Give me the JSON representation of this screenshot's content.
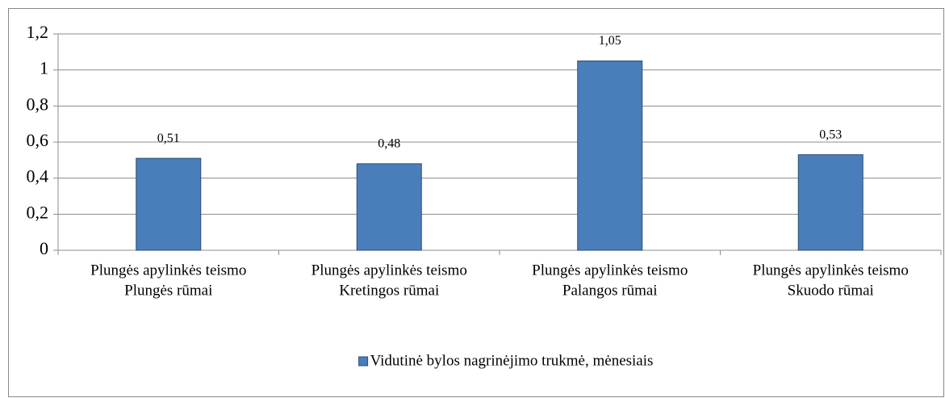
{
  "chart_data": {
    "type": "bar",
    "categories": [
      [
        "Plungės apylinkės teismo",
        "Plungės rūmai"
      ],
      [
        "Plungės apylinkės teismo",
        "Kretingos rūmai"
      ],
      [
        "Plungės apylinkės teismo",
        "Palangos rūmai"
      ],
      [
        "Plungės apylinkės teismo",
        "Skuodo rūmai"
      ]
    ],
    "series": [
      {
        "name": "Vidutinė bylos nagrinėjimo trukmė, mėnesiais",
        "color": "#4a7ebb",
        "values": [
          0.51,
          0.48,
          1.05,
          0.53
        ],
        "value_labels": [
          "0,51",
          "0,48",
          "1,05",
          "0,53"
        ]
      }
    ],
    "ylim": [
      0,
      1.2
    ],
    "yticks": [
      0,
      {
        "value": 0.2,
        "label": "0,2"
      },
      {
        "value": 0.4,
        "label": "0,4"
      },
      {
        "value": 0.6,
        "label": "0,6"
      },
      {
        "value": 0.8,
        "label": "0,8"
      },
      1,
      {
        "value": 1.2,
        "label": "1,2"
      }
    ],
    "grid": true,
    "legend": "bottom"
  }
}
